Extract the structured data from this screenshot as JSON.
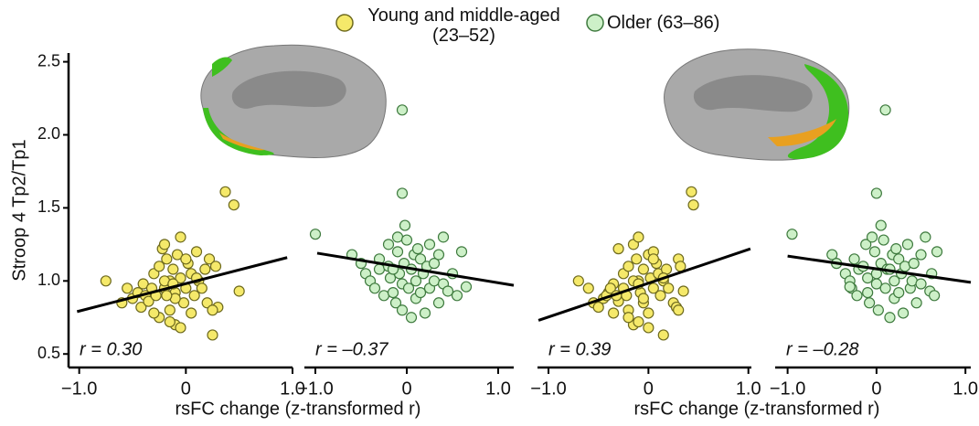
{
  "legend": [
    {
      "name": "Young and middle-aged (23–52)",
      "color": "#f5e96a",
      "edgecolor": "#6e6a1e"
    },
    {
      "name": "Older (63–86)",
      "color": "#cdf0c8",
      "edgecolor": "#3e7a3e"
    }
  ],
  "chart_data": [
    {
      "type": "scatter",
      "ylabel": "Stroop 4 Tp2/Tp1",
      "xlabel": "rsFC change (z-transformed r)",
      "annotation": "r = 0.30",
      "xlim": [
        -1.1,
        1.0
      ],
      "ylim": [
        0.42,
        2.56
      ],
      "xticks": [
        {
          "value": -1,
          "label": "−1.0"
        },
        0,
        {
          "value": 1,
          "label": "1.0"
        }
      ],
      "yticks": [
        0.5,
        {
          "value": 1,
          "label": "1.0"
        },
        1.5,
        {
          "value": 2,
          "label": "2.0"
        },
        2.5
      ],
      "series": [
        {
          "color": "#f5e96a",
          "edgecolor": "#6e6a1e",
          "x": [
            -0.75,
            -0.6,
            -0.55,
            -0.5,
            -0.45,
            -0.42,
            -0.4,
            -0.38,
            -0.35,
            -0.32,
            -0.3,
            -0.28,
            -0.25,
            -0.22,
            -0.2,
            -0.2,
            -0.18,
            -0.15,
            -0.15,
            -0.12,
            -0.1,
            -0.1,
            -0.08,
            -0.05,
            -0.05,
            -0.02,
            0,
            0.02,
            0.05,
            0.05,
            0.08,
            0.1,
            0.12,
            0.15,
            0.18,
            0.2,
            0.22,
            0.25,
            0.28,
            0.3,
            0.37,
            0.45,
            0.5,
            -0.25,
            -0.15,
            -0.1,
            -0.2,
            -0.3,
            -0.05,
            0,
            -0.12,
            -0.18,
            0.1,
            0.25
          ],
          "y": [
            1.0,
            0.85,
            0.95,
            0.88,
            0.92,
            0.82,
            0.98,
            0.9,
            0.86,
            0.95,
            1.05,
            0.9,
            1.1,
            1.22,
            1.25,
            0.95,
            1.15,
            1.0,
            0.8,
            1.08,
            0.92,
            0.7,
            1.18,
            1.3,
            1.02,
            0.85,
            0.95,
            1.12,
            1.05,
            0.78,
            0.9,
            1.2,
            1.0,
            0.95,
            1.08,
            0.85,
            1.15,
            0.63,
            1.1,
            0.82,
            1.61,
            1.52,
            0.93,
            0.75,
            0.72,
            0.88,
            1.0,
            0.78,
            0.68,
            1.15,
            0.98,
            0.9,
            1.02,
            0.8
          ]
        }
      ],
      "trend": {
        "x": [
          -1.02,
          0.95
        ],
        "y": [
          0.79,
          1.16
        ]
      }
    },
    {
      "type": "scatter",
      "annotation": "r = –0.37",
      "xlim": [
        -1.12,
        1.17
      ],
      "ylim": [
        0.42,
        2.56
      ],
      "xticks": [
        {
          "value": -1,
          "label": "−1.0"
        },
        0,
        {
          "value": 1,
          "label": "1.0"
        }
      ],
      "series": [
        {
          "color": "#cdf0c8",
          "edgecolor": "#3e7a3e",
          "x": [
            -1.0,
            -0.6,
            -0.5,
            -0.45,
            -0.4,
            -0.35,
            -0.3,
            -0.3,
            -0.25,
            -0.2,
            -0.2,
            -0.18,
            -0.15,
            -0.12,
            -0.1,
            -0.1,
            -0.08,
            -0.05,
            -0.05,
            -0.03,
            -0.02,
            0,
            -0.05,
            -0.05,
            0.02,
            0.05,
            0.05,
            0.08,
            0.1,
            0.1,
            0.12,
            0.15,
            0.15,
            0.18,
            0.2,
            0.22,
            0.25,
            0.25,
            0.3,
            0.3,
            0.35,
            0.35,
            0.4,
            0.4,
            0.45,
            0.5,
            0.55,
            0.6,
            0.65,
            -0.15
          ],
          "y": [
            1.32,
            1.18,
            1.12,
            1.05,
            1.0,
            0.95,
            1.15,
            1.08,
            0.9,
            1.1,
            1.25,
            1.02,
            0.92,
            0.85,
            1.3,
            1.2,
            1.05,
            0.98,
            0.8,
            1.12,
            1.38,
            1.28,
            1.6,
            2.17,
            0.95,
            1.08,
            0.75,
            1.18,
            1.0,
            0.88,
            1.22,
            1.15,
            0.92,
            1.05,
            0.78,
            1.1,
            1.25,
            0.95,
            1.0,
            1.12,
            0.85,
            1.18,
            0.98,
            1.3,
            0.93,
            1.05,
            0.9,
            1.2,
            0.96,
            1.08
          ]
        }
      ],
      "trend": {
        "x": [
          -0.98,
          1.17
        ],
        "y": [
          1.19,
          0.97
        ]
      }
    },
    {
      "type": "scatter",
      "xlabel": "rsFC change (z-transformed r)",
      "annotation": "r = 0.39",
      "xlim": [
        -1.11,
        1.03
      ],
      "ylim": [
        0.42,
        2.56
      ],
      "xticks": [
        {
          "value": -1,
          "label": "−1.0"
        },
        0,
        {
          "value": 1,
          "label": "1.0"
        }
      ],
      "series": [
        {
          "color": "#f5e96a",
          "edgecolor": "#6e6a1e",
          "x": [
            -0.7,
            -0.55,
            -0.6,
            -0.45,
            -0.4,
            -0.5,
            -0.35,
            -0.42,
            -0.3,
            -0.38,
            -0.25,
            -0.32,
            -0.2,
            -0.3,
            -0.15,
            -0.25,
            -0.12,
            -0.1,
            -0.2,
            -0.05,
            -0.08,
            -0.15,
            0,
            -0.1,
            0.02,
            -0.05,
            0.05,
            0.08,
            0.1,
            0,
            0.12,
            0.05,
            0.15,
            0.2,
            0.18,
            0.25,
            0.3,
            0.15,
            0.32,
            0.28,
            0.43,
            0.45,
            0.35,
            -0.2,
            -0.1,
            -0.05,
            -0.15,
            -0.35,
            0,
            0.05,
            -0.1,
            -0.22,
            0.15,
            0.3
          ],
          "y": [
            1.0,
            0.85,
            0.95,
            0.88,
            0.92,
            0.82,
            0.98,
            0.9,
            0.86,
            0.95,
            1.05,
            0.9,
            1.1,
            1.22,
            1.25,
            0.95,
            1.15,
            1.0,
            0.8,
            1.08,
            0.92,
            0.7,
            1.18,
            1.3,
            1.02,
            0.85,
            0.95,
            1.12,
            1.05,
            0.78,
            0.9,
            1.2,
            1.0,
            0.95,
            1.08,
            0.85,
            1.15,
            0.63,
            1.1,
            0.82,
            1.61,
            1.52,
            0.93,
            0.75,
            0.72,
            0.88,
            1.0,
            0.78,
            0.68,
            1.15,
            0.98,
            0.9,
            1.02,
            0.8
          ]
        }
      ],
      "trend": {
        "x": [
          -1.1,
          1.02
        ],
        "y": [
          0.73,
          1.22
        ]
      }
    },
    {
      "type": "scatter",
      "annotation": "r = –0.28",
      "xlim": [
        -1.14,
        1.06
      ],
      "ylim": [
        0.42,
        2.56
      ],
      "xticks": [
        {
          "value": -1,
          "label": "−1.0"
        },
        0,
        {
          "value": 1,
          "label": "1.0"
        }
      ],
      "series": [
        {
          "color": "#cdf0c8",
          "edgecolor": "#3e7a3e",
          "x": [
            -0.95,
            -0.5,
            -0.45,
            -0.35,
            -0.3,
            -0.28,
            -0.25,
            -0.2,
            -0.22,
            -0.15,
            -0.12,
            -0.1,
            -0.1,
            -0.08,
            -0.05,
            -0.02,
            0,
            0,
            0.02,
            0.05,
            0.05,
            0.08,
            0,
            0.1,
            0.1,
            0.12,
            0.15,
            0.18,
            0.2,
            0.2,
            0.22,
            0.25,
            0.25,
            0.28,
            0.3,
            0.32,
            0.35,
            0.38,
            0.4,
            0.42,
            0.45,
            0.5,
            0.5,
            0.55,
            0.6,
            0.62,
            0.65,
            0.68,
            -0.3,
            0.15
          ],
          "y": [
            1.32,
            1.18,
            1.12,
            1.05,
            1.0,
            0.95,
            1.15,
            1.08,
            0.9,
            1.1,
            1.25,
            1.02,
            0.92,
            0.85,
            1.3,
            1.2,
            1.05,
            0.98,
            0.8,
            1.12,
            1.38,
            1.28,
            1.6,
            2.17,
            0.95,
            1.08,
            0.75,
            1.18,
            1.0,
            0.88,
            1.22,
            1.15,
            0.92,
            1.05,
            0.78,
            1.1,
            1.25,
            0.95,
            1.0,
            1.12,
            0.85,
            1.18,
            0.98,
            1.3,
            0.93,
            1.05,
            0.9,
            1.2,
            0.96,
            1.08
          ]
        }
      ],
      "trend": {
        "x": [
          -1.0,
          1.06
        ],
        "y": [
          1.17,
          0.99
        ]
      }
    }
  ]
}
